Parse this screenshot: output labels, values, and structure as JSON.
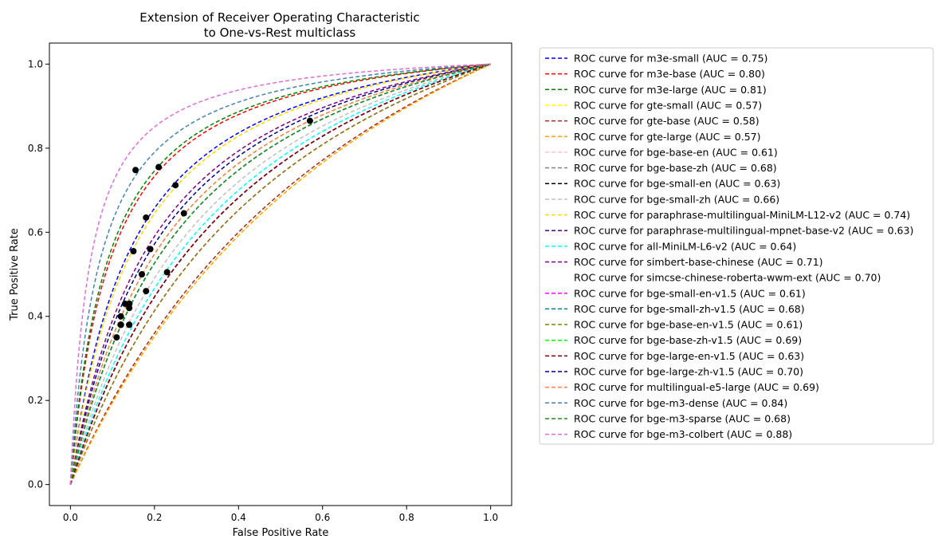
{
  "chart_data": {
    "type": "line",
    "title_line1": "Extension of Receiver Operating Characteristic",
    "title_line2": "to One-vs-Rest multiclass",
    "xlabel": "False Positive Rate",
    "ylabel": "True Positive Rate",
    "xlim": [
      -0.05,
      1.05
    ],
    "ylim": [
      -0.05,
      1.05
    ],
    "xticks": [
      "0.0",
      "0.2",
      "0.4",
      "0.6",
      "0.8",
      "1.0"
    ],
    "yticks": [
      "0.0",
      "0.2",
      "0.4",
      "0.6",
      "0.8",
      "1.0"
    ],
    "grid": false,
    "legend_position": "outside-right",
    "series": [
      {
        "name": "ROC curve for m3e-small (AUC = 0.75)",
        "color": "#0000ff",
        "k": 0.15,
        "op": [
          0.27,
          0.645
        ]
      },
      {
        "name": "ROC curve for m3e-base (AUC = 0.80)",
        "color": "#ff0000",
        "k": 0.1,
        "op": [
          0.18,
          0.635
        ]
      },
      {
        "name": "ROC curve for m3e-large (AUC = 0.81)",
        "color": "#008000",
        "k": 0.093,
        "op": [
          0.25,
          0.712
        ]
      },
      {
        "name": "ROC curve for gte-small (AUC = 0.57)",
        "color": "#ffff00",
        "k": 0.85,
        "op": [
          0.14,
          0.42
        ]
      },
      {
        "name": "ROC curve for gte-base (AUC = 0.58)",
        "color": "#a52a2a",
        "k": 0.8,
        "op": [
          0.14,
          0.38
        ]
      },
      {
        "name": "ROC curve for gte-large (AUC = 0.57)",
        "color": "#ffa500",
        "k": 0.85,
        "op": [
          0.14,
          0.38
        ]
      },
      {
        "name": "ROC curve for bge-base-en (AUC = 0.61)",
        "color": "#ffc0cb",
        "k": 0.55,
        "op": [
          0.12,
          0.4
        ]
      },
      {
        "name": "ROC curve for bge-base-zh (AUC = 0.68)",
        "color": "#808080",
        "k": 0.29,
        "op": [
          0.14,
          0.43
        ]
      },
      {
        "name": "ROC curve for bge-small-en (AUC = 0.63)",
        "color": "#000000",
        "k": 0.45,
        "op": [
          0.12,
          0.38
        ]
      },
      {
        "name": "ROC curve for bge-small-zh (AUC = 0.66)",
        "color": "#c0c0c0",
        "k": 0.35,
        "op": [
          0.14,
          0.42
        ]
      },
      {
        "name": "ROC curve for paraphrase-multilingual-MiniLM-L12-v2 (AUC = 0.74)",
        "color": "#ffd700",
        "k": 0.16,
        "op": [
          0.19,
          0.56
        ]
      },
      {
        "name": "ROC curve for paraphrase-multilingual-mpnet-base-v2 (AUC = 0.63)",
        "color": "#4b0082",
        "k": 0.45,
        "op": [
          0.12,
          0.38
        ]
      },
      {
        "name": "ROC curve for all-MiniLM-L6-v2 (AUC = 0.64)",
        "color": "#00ffff",
        "k": 0.4,
        "op": [
          0.13,
          0.43
        ]
      },
      {
        "name": "ROC curve for simbert-base-chinese (AUC = 0.71)",
        "color": "#800080",
        "k": 0.21,
        "op": [
          0.57,
          0.865
        ]
      },
      {
        "name": "ROC curve for simcse-chinese-roberta-wwm-ext (AUC = 0.70)",
        "color": "#ffffff",
        "k": 0.23,
        "op": [
          0.17,
          0.5
        ]
      },
      {
        "name": "ROC curve for bge-small-en-v1.5 (AUC = 0.61)",
        "color": "#ff00ff",
        "k": 0.55,
        "op": [
          0.12,
          0.38
        ]
      },
      {
        "name": "ROC curve for bge-small-zh-v1.5 (AUC = 0.68)",
        "color": "#008080",
        "k": 0.29,
        "op": [
          0.14,
          0.43
        ]
      },
      {
        "name": "ROC curve for bge-base-en-v1.5 (AUC = 0.61)",
        "color": "#808000",
        "k": 0.55,
        "op": [
          0.12,
          0.38
        ]
      },
      {
        "name": "ROC curve for bge-base-zh-v1.5 (AUC = 0.69)",
        "color": "#00ff00",
        "k": 0.26,
        "op": [
          0.14,
          0.43
        ]
      },
      {
        "name": "ROC curve for bge-large-en-v1.5 (AUC = 0.63)",
        "color": "#800000",
        "k": 0.45,
        "op": [
          0.11,
          0.35
        ]
      },
      {
        "name": "ROC curve for bge-large-zh-v1.5 (AUC = 0.70)",
        "color": "#000080",
        "k": 0.23,
        "op": [
          0.23,
          0.505
        ]
      },
      {
        "name": "ROC curve for multilingual-e5-large (AUC = 0.69)",
        "color": "#ff7f50",
        "k": 0.26,
        "op": [
          0.18,
          0.46
        ]
      },
      {
        "name": "ROC curve for bge-m3-dense (AUC = 0.84)",
        "color": "#4682b4",
        "k": 0.071,
        "op": [
          0.21,
          0.755
        ]
      },
      {
        "name": "ROC curve for bge-m3-sparse (AUC = 0.68)",
        "color": "#228b22",
        "k": 0.29,
        "op": [
          0.15,
          0.555
        ]
      },
      {
        "name": "ROC curve for bge-m3-colbert (AUC = 0.88)",
        "color": "#da70d6",
        "k": 0.046,
        "op": [
          0.155,
          0.748
        ]
      }
    ]
  }
}
